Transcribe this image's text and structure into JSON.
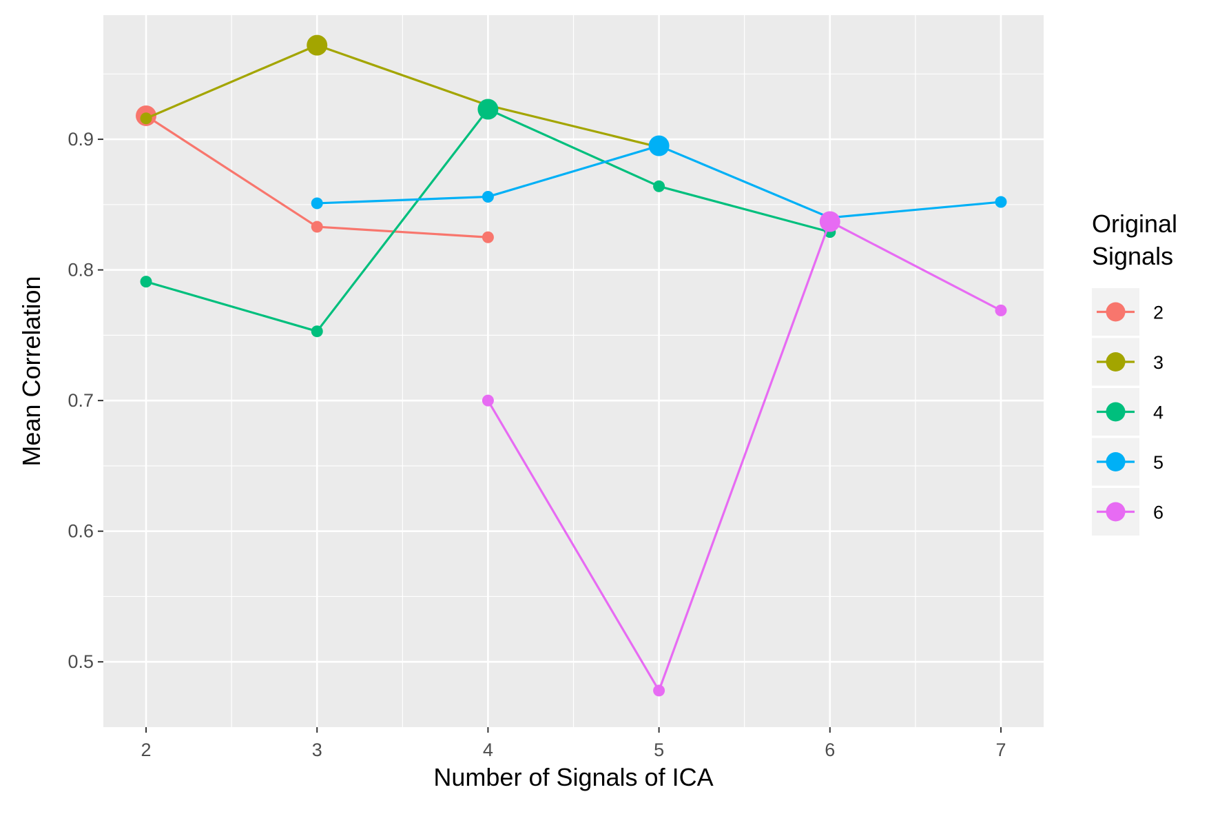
{
  "chart_data": {
    "type": "line",
    "xlabel": "Number of Signals of ICA",
    "ylabel": "Mean Correlation",
    "xlim": [
      1.75,
      7.25
    ],
    "ylim": [
      0.45,
      0.995
    ],
    "x_ticks": [
      2,
      3,
      4,
      5,
      6,
      7
    ],
    "y_ticks": [
      0.5,
      0.6,
      0.7,
      0.8,
      0.9
    ],
    "grid": true,
    "legend": {
      "title_line1": "Original",
      "title_line2": "Signals",
      "placement": "right"
    },
    "series": [
      {
        "name": "2",
        "color": "#F8766D",
        "points": [
          {
            "x": 2,
            "y": 0.918,
            "highlight": true
          },
          {
            "x": 3,
            "y": 0.833,
            "highlight": false
          },
          {
            "x": 4,
            "y": 0.825,
            "highlight": false
          }
        ]
      },
      {
        "name": "3",
        "color": "#A3A500",
        "points": [
          {
            "x": 2,
            "y": 0.916,
            "highlight": false
          },
          {
            "x": 3,
            "y": 0.972,
            "highlight": true
          },
          {
            "x": 4,
            "y": 0.926,
            "highlight": false
          },
          {
            "x": 5,
            "y": 0.894,
            "highlight": false
          }
        ]
      },
      {
        "name": "4",
        "color": "#00BF7D",
        "points": [
          {
            "x": 2,
            "y": 0.791,
            "highlight": false
          },
          {
            "x": 3,
            "y": 0.753,
            "highlight": false
          },
          {
            "x": 4,
            "y": 0.923,
            "highlight": true
          },
          {
            "x": 5,
            "y": 0.864,
            "highlight": false
          },
          {
            "x": 6,
            "y": 0.829,
            "highlight": false
          }
        ]
      },
      {
        "name": "5",
        "color": "#00B0F6",
        "points": [
          {
            "x": 3,
            "y": 0.851,
            "highlight": false
          },
          {
            "x": 4,
            "y": 0.856,
            "highlight": false
          },
          {
            "x": 5,
            "y": 0.895,
            "highlight": true
          },
          {
            "x": 6,
            "y": 0.84,
            "highlight": false
          },
          {
            "x": 7,
            "y": 0.852,
            "highlight": false
          }
        ]
      },
      {
        "name": "6",
        "color": "#E76BF3",
        "points": [
          {
            "x": 4,
            "y": 0.7,
            "highlight": false
          },
          {
            "x": 5,
            "y": 0.478,
            "highlight": false
          },
          {
            "x": 6,
            "y": 0.837,
            "highlight": true
          },
          {
            "x": 7,
            "y": 0.769,
            "highlight": false
          }
        ]
      }
    ]
  }
}
